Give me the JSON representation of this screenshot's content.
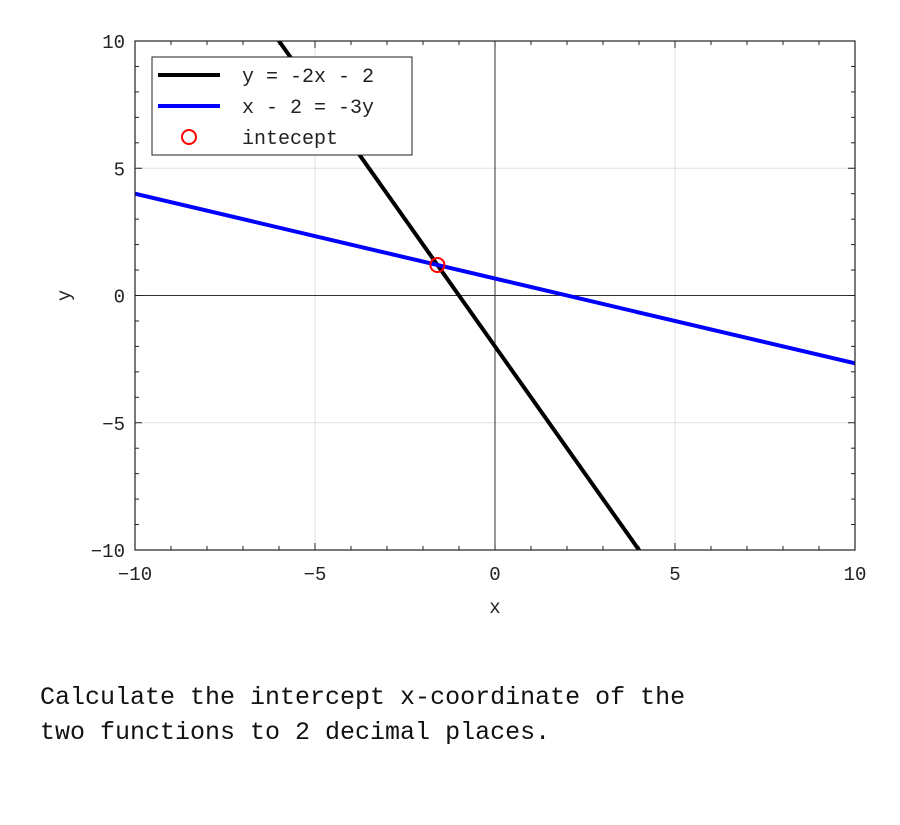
{
  "chart_data": {
    "type": "line",
    "xlabel": "x",
    "ylabel": "y",
    "xlim": [
      -10,
      10
    ],
    "ylim": [
      -10,
      10
    ],
    "xticks": [
      -10,
      -5,
      0,
      5,
      10
    ],
    "yticks": [
      -10,
      -5,
      0,
      5,
      10
    ],
    "grid": true,
    "legend_position": "top-left",
    "series": [
      {
        "name": "y = -2x - 2",
        "type": "line",
        "slope": -2,
        "intercept": -2,
        "color": "#000000"
      },
      {
        "name": "x - 2 = -3y",
        "type": "line",
        "slope": -0.3333,
        "intercept": 0.6667,
        "color": "#0000ff"
      },
      {
        "name": "intecept",
        "type": "scatter",
        "marker": "circle-open",
        "x": [
          -1.6
        ],
        "y": [
          1.2
        ],
        "color": "#ff0000"
      }
    ]
  },
  "question": "Calculate the intercept x-coordinate of the\ntwo functions to 2 decimal places."
}
